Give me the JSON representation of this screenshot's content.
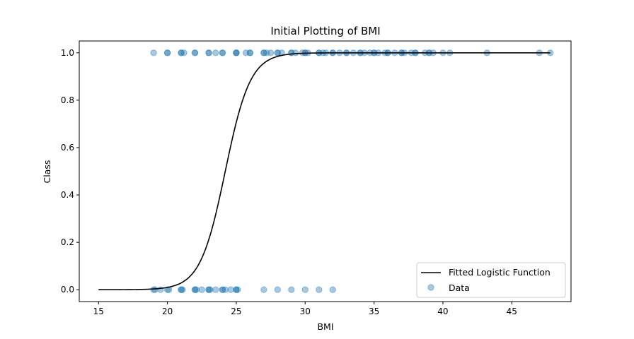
{
  "chart_data": {
    "type": "scatter",
    "title": "Initial Plotting of BMI",
    "xlabel": "BMI",
    "ylabel": "Class",
    "xlim": [
      13.6,
      49.3
    ],
    "ylim": [
      -0.05,
      1.05
    ],
    "xticks": [
      15,
      20,
      25,
      30,
      35,
      40,
      45
    ],
    "yticks": [
      0.0,
      0.2,
      0.4,
      0.6,
      0.8,
      1.0
    ],
    "xtick_labels": [
      "15",
      "20",
      "25",
      "30",
      "35",
      "40",
      "45"
    ],
    "ytick_labels": [
      "0.0",
      "0.2",
      "0.4",
      "0.6",
      "0.8",
      "1.0"
    ],
    "grid": false,
    "legend_position": "lower-right",
    "series": [
      {
        "name": "Fitted Logistic Function",
        "kind": "line",
        "color": "#000000",
        "function": "logistic",
        "midpoint": 24.2,
        "steepness": 1.1,
        "x_range": [
          15,
          47.8
        ]
      },
      {
        "name": "Data",
        "kind": "scatter",
        "color": "#1f77b4",
        "alpha": 0.4,
        "points_class_1": [
          19,
          20,
          20,
          21,
          21,
          21.2,
          22,
          22,
          23,
          23,
          23.5,
          24,
          24,
          25,
          25,
          25,
          25.7,
          26,
          26,
          27,
          27,
          27.2,
          27.5,
          28,
          28,
          28.3,
          29,
          29,
          29.3,
          29.8,
          30,
          30,
          30.2,
          31,
          31,
          31.3,
          31.5,
          32,
          32,
          32.5,
          33,
          33,
          33.5,
          34,
          34,
          34.3,
          34.7,
          35,
          35,
          35.3,
          35.8,
          36,
          36,
          36.5,
          37,
          37,
          37.2,
          37.7,
          38,
          38,
          38.7,
          39,
          39,
          39.3,
          40,
          40.5,
          43.2,
          47,
          47.8
        ],
        "points_class_0": [
          19,
          19.1,
          19.5,
          20,
          20.1,
          21,
          21,
          21.1,
          22,
          22,
          22.1,
          22.5,
          23,
          23,
          23.1,
          23.5,
          24,
          24,
          24.2,
          24.6,
          25,
          25,
          25.1,
          27,
          28,
          29,
          30,
          31,
          32
        ]
      }
    ]
  }
}
